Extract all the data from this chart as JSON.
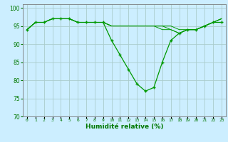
{
  "xlabel": "Humidité relative (%)",
  "background_color": "#cceeff",
  "grid_color": "#aacccc",
  "line_color": "#009900",
  "xlim": [
    -0.5,
    23.5
  ],
  "ylim": [
    70,
    101
  ],
  "yticks": [
    70,
    75,
    80,
    85,
    90,
    95,
    100
  ],
  "xtick_labels": [
    "0",
    "1",
    "2",
    "3",
    "4",
    "5",
    "6",
    "7",
    "8",
    "9",
    "10",
    "11",
    "12",
    "13",
    "14",
    "15",
    "16",
    "17",
    "18",
    "19",
    "20",
    "21",
    "22",
    "23"
  ],
  "series": [
    [
      94,
      96,
      96,
      97,
      97,
      97,
      96,
      96,
      96,
      96,
      91,
      87,
      83,
      79,
      77,
      78,
      85,
      91,
      93,
      94,
      94,
      95,
      96,
      96
    ],
    [
      94,
      96,
      96,
      97,
      97,
      97,
      96,
      96,
      96,
      96,
      95,
      95,
      95,
      95,
      95,
      95,
      94,
      94,
      93,
      94,
      94,
      95,
      96,
      97
    ],
    [
      94,
      96,
      96,
      97,
      97,
      97,
      96,
      96,
      96,
      96,
      95,
      95,
      95,
      95,
      95,
      95,
      95,
      94,
      93,
      94,
      94,
      95,
      96,
      97
    ],
    [
      94,
      96,
      96,
      97,
      97,
      97,
      96,
      96,
      96,
      96,
      95,
      95,
      95,
      95,
      95,
      95,
      95,
      95,
      94,
      94,
      94,
      95,
      96,
      97
    ]
  ]
}
